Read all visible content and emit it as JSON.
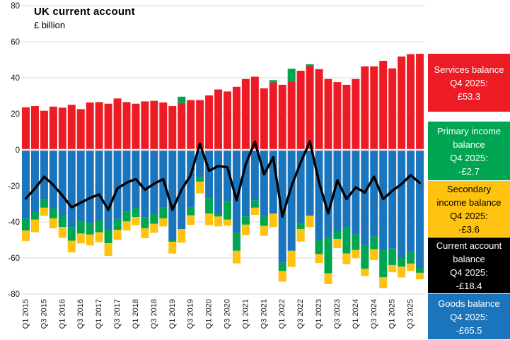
{
  "title": "UK current account",
  "subtitle": "£ billion",
  "legend_boxes": [
    {
      "label": "Services balance",
      "period": "Q4 2025:",
      "value": "£53.3",
      "bg": "#ED1C24",
      "fg": "#FFFFFF"
    },
    {
      "label": "Primary income balance",
      "period": "Q4 2025:",
      "value": "-£2.7",
      "bg": "#00A551",
      "fg": "#FFFFFF"
    },
    {
      "label": "Secondary income balance",
      "period": "Q4 2025:",
      "value": "-£3.6",
      "bg": "#FFC20E",
      "fg": "#000000"
    },
    {
      "label": "Current account balance",
      "period": "Q4 2025:",
      "value": "-£18.4",
      "bg": "#000000",
      "fg": "#FFFFFF"
    },
    {
      "label": "Goods balance",
      "period": "Q4 2025:",
      "value": "-£65.5",
      "bg": "#1B75BC",
      "fg": "#FFFFFF"
    }
  ],
  "chart_data": {
    "type": "bar",
    "subtype": "stacked-bars-with-line",
    "title": "UK current account",
    "ylabel": "£ billion",
    "ylim": [
      -80,
      80
    ],
    "ytick_step": 20,
    "grid": "horizontal",
    "legend_position": "right",
    "x": [
      "Q1 2015",
      "Q2 2015",
      "Q3 2015",
      "Q4 2015",
      "Q1 2016",
      "Q2 2016",
      "Q3 2016",
      "Q4 2016",
      "Q1 2017",
      "Q2 2017",
      "Q3 2017",
      "Q4 2017",
      "Q1 2018",
      "Q2 2018",
      "Q3 2018",
      "Q4 2018",
      "Q1 2019",
      "Q2 2019",
      "Q3 2019",
      "Q4 2019",
      "Q1 2020",
      "Q2 2020",
      "Q3 2020",
      "Q4 2020",
      "Q1 2021",
      "Q2 2021",
      "Q3 2021",
      "Q4 2021",
      "Q1 2022",
      "Q2 2022",
      "Q3 2022",
      "Q4 2022",
      "Q1 2023",
      "Q2 2023",
      "Q3 2023",
      "Q4 2023",
      "Q1 2024",
      "Q2 2024",
      "Q3 2024",
      "Q4 2024",
      "Q1 2025",
      "Q2 2025",
      "Q3 2025",
      "Q4 2025"
    ],
    "xtick_every": 2,
    "series": [
      {
        "name": "Services balance",
        "kind": "bar",
        "color": "#ED1C24",
        "values": [
          23.6,
          24.3,
          21.7,
          24.0,
          23.4,
          25.0,
          22.6,
          26.3,
          26.5,
          25.6,
          28.5,
          26.5,
          25.6,
          26.9,
          27.2,
          26.3,
          24.3,
          26.0,
          27.6,
          27.6,
          30.2,
          33.5,
          32.4,
          35.0,
          39.3,
          40.6,
          34.1,
          37.4,
          36.1,
          38.0,
          43.9,
          46.5,
          44.8,
          39.3,
          37.6,
          36.1,
          39.3,
          46.3,
          46.3,
          49.4,
          45.2,
          51.8,
          53.1,
          53.3
        ]
      },
      {
        "name": "Goods balance",
        "kind": "bar",
        "color": "#1B75BC",
        "values": [
          -38.3,
          -34.5,
          -27.6,
          -32.5,
          -36.8,
          -42.9,
          -39.4,
          -40.5,
          -39.2,
          -44.3,
          -38.4,
          -34.2,
          -32.3,
          -37.5,
          -35.5,
          -32.0,
          -50.0,
          -44.0,
          -32.0,
          -15.0,
          -26.8,
          -35.5,
          -28.7,
          -46.0,
          -37.0,
          -28.1,
          -36.7,
          -35.3,
          -62.6,
          -56.0,
          -40.4,
          -36.5,
          -50.2,
          -48.9,
          -44.9,
          -43.1,
          -47.0,
          -52.8,
          -48.1,
          -55.6,
          -54.8,
          -60.0,
          -56.6,
          -65.5
        ]
      },
      {
        "name": "Primary income balance",
        "kind": "bar",
        "color": "#00A551",
        "values": [
          -6.4,
          -4.2,
          -4.5,
          -5.5,
          -6.0,
          -7.5,
          -7.0,
          -6.5,
          -6.5,
          -7.5,
          -6.0,
          -5.5,
          -5.0,
          -6.0,
          -5.5,
          -6.0,
          -1.0,
          3.5,
          -4.3,
          -2.6,
          -8.5,
          -1.5,
          -10.0,
          -10.0,
          -4.5,
          -4.0,
          -5.5,
          1.3,
          -4.6,
          7.0,
          -3.5,
          1.0,
          -7.6,
          -19.6,
          -4.5,
          -14.4,
          -8.5,
          -13.2,
          -7.0,
          -15.1,
          -9.1,
          -4.8,
          -6.5,
          -2.7
        ]
      },
      {
        "name": "Secondary income balance",
        "kind": "bar",
        "color": "#FFC20E",
        "values": [
          -5.9,
          -7.0,
          -4.5,
          -5.5,
          -6.0,
          -6.5,
          -5.5,
          -6.0,
          -5.5,
          -7.0,
          -5.5,
          -5.0,
          -4.5,
          -5.5,
          -5.0,
          -4.5,
          -6.5,
          -7.5,
          -5.3,
          -6.6,
          -6.5,
          -5.5,
          -3.4,
          -7.0,
          -5.8,
          -4.0,
          -5.5,
          -7.5,
          -5.9,
          -9.0,
          -7.0,
          -6.3,
          -5.0,
          -6.0,
          -5.1,
          -5.9,
          -4.6,
          -4.0,
          -6.1,
          -6.0,
          -4.0,
          -6.0,
          -4.0,
          -3.6
        ]
      },
      {
        "name": "Current account balance",
        "kind": "line",
        "color": "#000000",
        "values": [
          -27.0,
          -21.4,
          -14.9,
          -19.5,
          -25.4,
          -31.9,
          -29.3,
          -26.7,
          -24.7,
          -33.2,
          -21.4,
          -18.2,
          -16.2,
          -22.1,
          -18.8,
          -16.2,
          -33.2,
          -22.0,
          -14.0,
          3.4,
          -11.6,
          -9.0,
          -9.7,
          -28.0,
          -8.0,
          4.5,
          -13.6,
          -4.1,
          -37.0,
          -20.0,
          -7.0,
          4.7,
          -18.0,
          -35.2,
          -16.9,
          -27.3,
          -20.8,
          -23.7,
          -14.9,
          -27.3,
          -22.7,
          -19.0,
          -14.0,
          -18.4
        ]
      }
    ],
    "colors": {
      "gridline": "#D9D9D9",
      "axis_text": "#1a1a1a",
      "background": "#FFFFFF"
    }
  }
}
